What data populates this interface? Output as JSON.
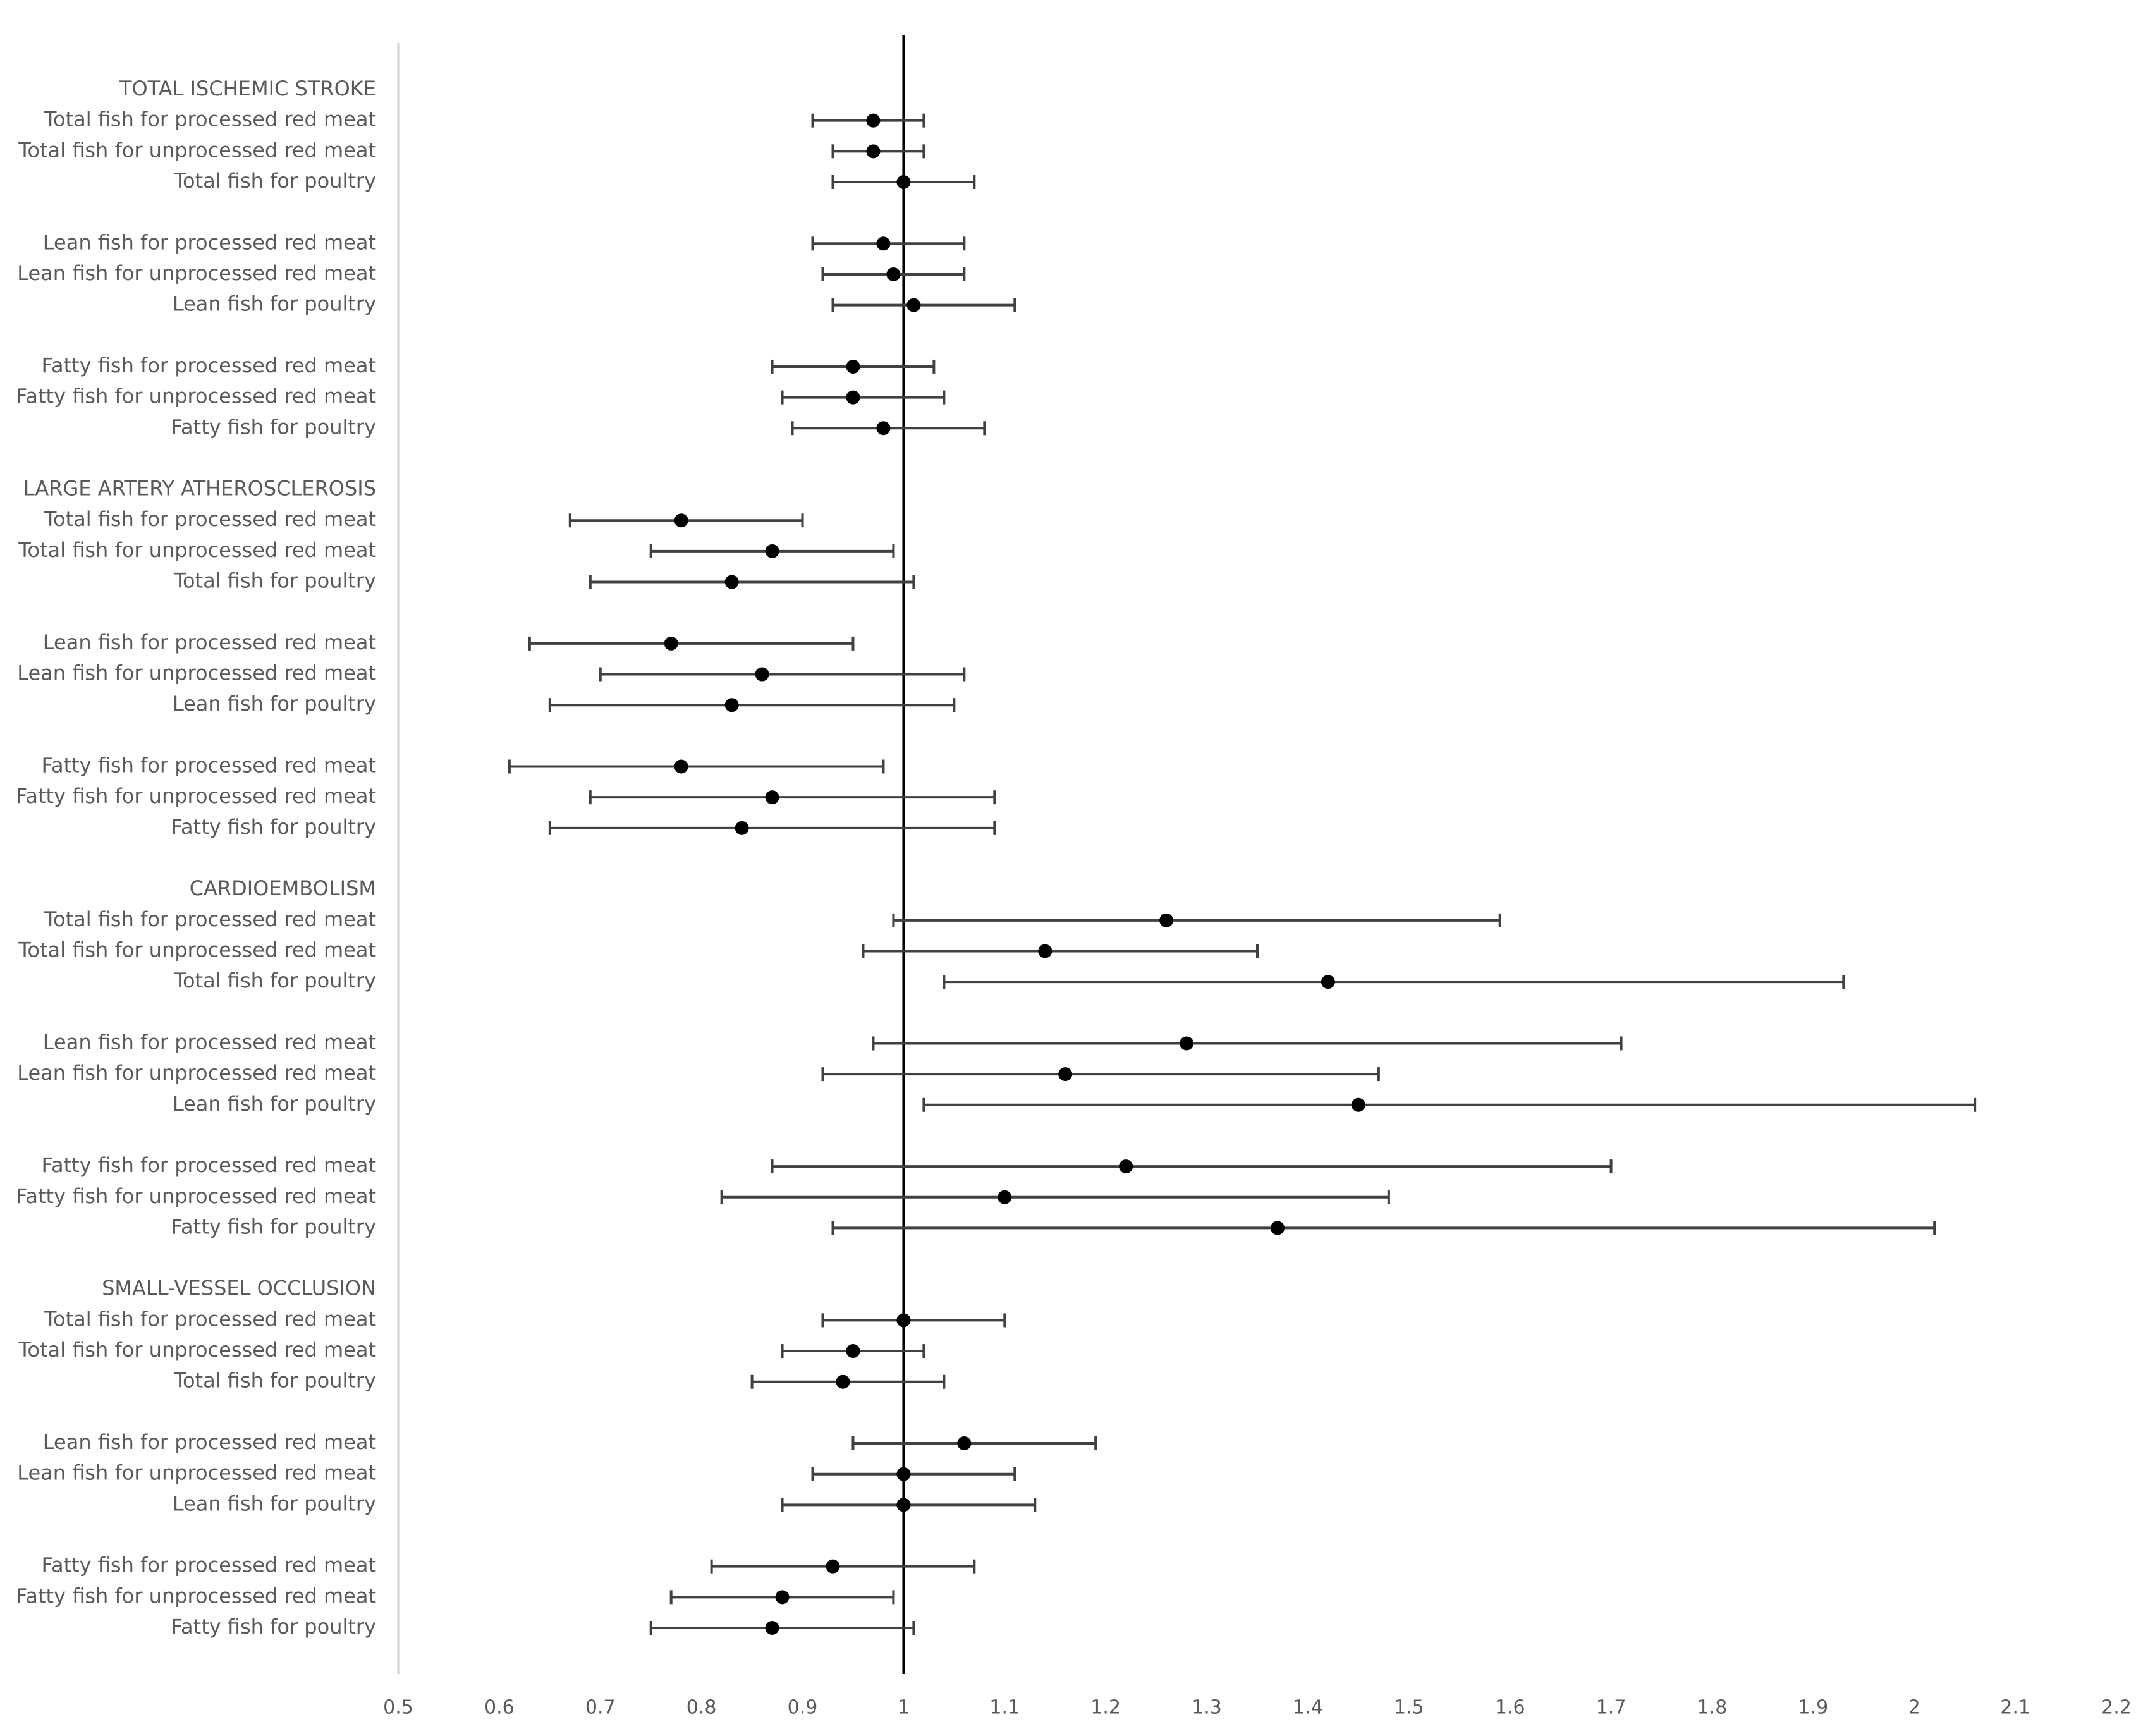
{
  "chart_data": {
    "type": "forest",
    "title": "",
    "xlabel": "",
    "ylabel": "",
    "reference_line": 1,
    "xlim": [
      0.5,
      2.2
    ],
    "xticks": [
      "0.5",
      "0.6",
      "0.7",
      "0.8",
      "0.9",
      "1",
      "1.1",
      "1.2",
      "1.3",
      "1.4",
      "1.5",
      "1.6",
      "1.7",
      "1.8",
      "1.9",
      "2",
      "2.1",
      "2.2"
    ],
    "groups": [
      {
        "title": "TOTAL ISCHEMIC STROKE",
        "rows": [
          {
            "label": "Total fish for processed red meat",
            "est": 0.97,
            "low": 0.91,
            "high": 1.02
          },
          {
            "label": "Total fish for unprocessed red meat",
            "est": 0.97,
            "low": 0.93,
            "high": 1.02
          },
          {
            "label": "Total fish for poultry",
            "est": 1.0,
            "low": 0.93,
            "high": 1.07
          },
          {
            "label": "Lean fish for processed red meat",
            "est": 0.98,
            "low": 0.91,
            "high": 1.06
          },
          {
            "label": "Lean fish for unprocessed red meat",
            "est": 0.99,
            "low": 0.92,
            "high": 1.06
          },
          {
            "label": "Lean fish for poultry",
            "est": 1.01,
            "low": 0.93,
            "high": 1.11
          },
          {
            "label": "Fatty fish for processed red meat",
            "est": 0.95,
            "low": 0.87,
            "high": 1.03
          },
          {
            "label": "Fatty fish for unprocessed red meat",
            "est": 0.95,
            "low": 0.88,
            "high": 1.04
          },
          {
            "label": "Fatty fish for poultry",
            "est": 0.98,
            "low": 0.89,
            "high": 1.08
          }
        ]
      },
      {
        "title": "LARGE ARTERY ATHEROSCLEROSIS",
        "rows": [
          {
            "label": "Total fish for processed red meat",
            "est": 0.78,
            "low": 0.67,
            "high": 0.9
          },
          {
            "label": "Total fish for unprocessed red meat",
            "est": 0.87,
            "low": 0.75,
            "high": 0.99
          },
          {
            "label": "Total fish for poultry",
            "est": 0.83,
            "low": 0.69,
            "high": 1.01
          },
          {
            "label": "Lean fish for processed red meat",
            "est": 0.77,
            "low": 0.63,
            "high": 0.95
          },
          {
            "label": "Lean fish for unprocessed red meat",
            "est": 0.86,
            "low": 0.7,
            "high": 1.06
          },
          {
            "label": "Lean fish for poultry",
            "est": 0.83,
            "low": 0.65,
            "high": 1.05
          },
          {
            "label": "Fatty fish for processed red meat",
            "est": 0.78,
            "low": 0.61,
            "high": 0.98
          },
          {
            "label": "Fatty fish for unprocessed red meat",
            "est": 0.87,
            "low": 0.69,
            "high": 1.09
          },
          {
            "label": "Fatty fish for poultry",
            "est": 0.84,
            "low": 0.65,
            "high": 1.09
          }
        ]
      },
      {
        "title": "CARDIOEMBOLISM",
        "rows": [
          {
            "label": "Total fish for processed red meat",
            "est": 1.26,
            "low": 0.99,
            "high": 1.59
          },
          {
            "label": "Total fish for unprocessed red meat",
            "est": 1.14,
            "low": 0.96,
            "high": 1.35
          },
          {
            "label": "Total fish for poultry",
            "est": 1.42,
            "low": 1.04,
            "high": 1.93
          },
          {
            "label": "Lean fish for processed red meat",
            "est": 1.28,
            "low": 0.97,
            "high": 1.71
          },
          {
            "label": "Lean fish for unprocessed red meat",
            "est": 1.16,
            "low": 0.92,
            "high": 1.47
          },
          {
            "label": "Lean fish for poultry",
            "est": 1.45,
            "low": 1.02,
            "high": 2.06
          },
          {
            "label": "Fatty fish for processed red meat",
            "est": 1.22,
            "low": 0.87,
            "high": 1.7
          },
          {
            "label": "Fatty fish for unprocessed red meat",
            "est": 1.1,
            "low": 0.82,
            "high": 1.48
          },
          {
            "label": "Fatty fish for poultry",
            "est": 1.37,
            "low": 0.93,
            "high": 2.02
          }
        ]
      },
      {
        "title": "SMALL-VESSEL OCCLUSION",
        "rows": [
          {
            "label": "Total fish for processed red meat",
            "est": 1.0,
            "low": 0.92,
            "high": 1.1
          },
          {
            "label": "Total fish for unprocessed red meat",
            "est": 0.95,
            "low": 0.88,
            "high": 1.02
          },
          {
            "label": "Total fish for poultry",
            "est": 0.94,
            "low": 0.85,
            "high": 1.04
          },
          {
            "label": "Lean fish for processed red meat",
            "est": 1.06,
            "low": 0.95,
            "high": 1.19
          },
          {
            "label": "Lean fish for unprocessed red meat",
            "est": 1.0,
            "low": 0.91,
            "high": 1.11
          },
          {
            "label": "Lean fish for poultry",
            "est": 1.0,
            "low": 0.88,
            "high": 1.13
          },
          {
            "label": "Fatty fish for processed red meat",
            "est": 0.93,
            "low": 0.81,
            "high": 1.07
          },
          {
            "label": "Fatty fish for unprocessed red meat",
            "est": 0.88,
            "low": 0.77,
            "high": 0.99
          },
          {
            "label": "Fatty fish for poultry",
            "est": 0.87,
            "low": 0.75,
            "high": 1.01
          }
        ]
      }
    ]
  }
}
